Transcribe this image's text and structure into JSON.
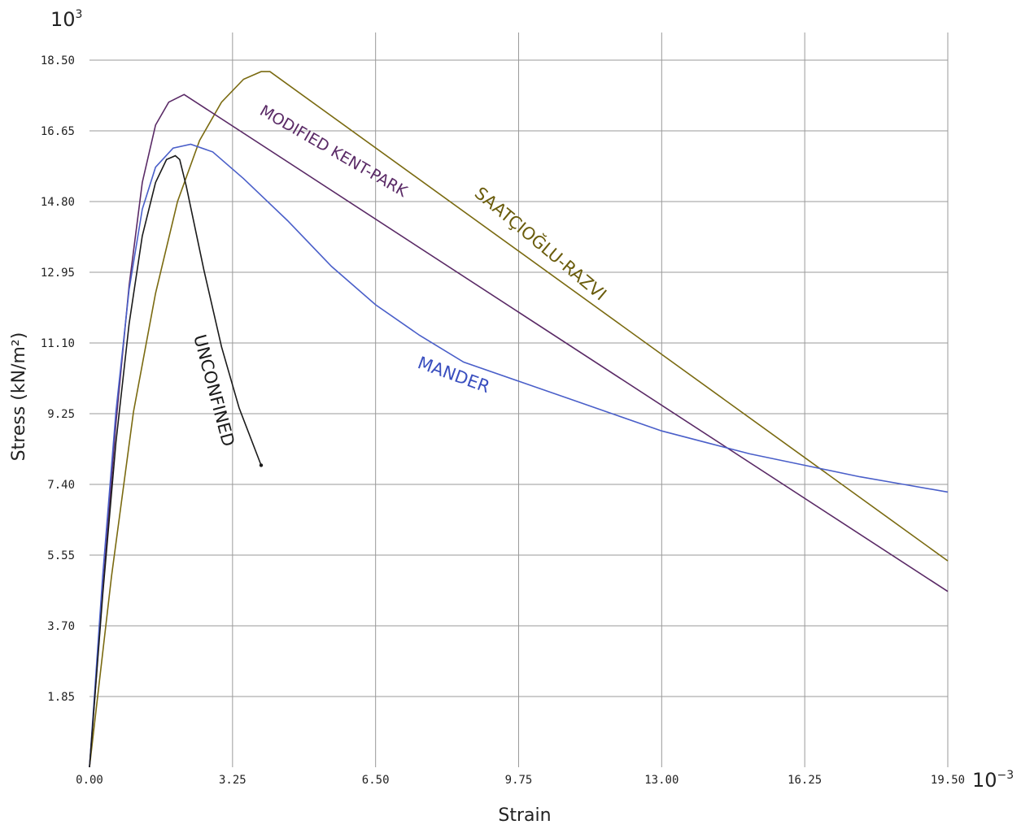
{
  "chart_data": {
    "type": "line",
    "xlabel": "Strain",
    "ylabel": "Stress (kN/m²)",
    "x_multiplier": "10",
    "x_multiplier_exp": "−3",
    "y_multiplier": "10",
    "y_multiplier_exp": "3",
    "xlim": [
      0,
      19.5
    ],
    "ylim": [
      0,
      18.5
    ],
    "x_ticks": [
      "0.00",
      "3.25",
      "6.50",
      "9.75",
      "13.00",
      "16.25",
      "19.50"
    ],
    "y_ticks": [
      "1.85",
      "3.70",
      "5.55",
      "7.40",
      "9.25",
      "11.10",
      "12.95",
      "14.80",
      "16.65",
      "18.50"
    ],
    "grid": true,
    "legend": "inline-labels",
    "series": [
      {
        "name": "UNCONFINED",
        "color": "#1a1a1a",
        "points": [
          [
            0,
            0
          ],
          [
            0.3,
            4.5
          ],
          [
            0.6,
            8.5
          ],
          [
            0.9,
            11.6
          ],
          [
            1.2,
            13.9
          ],
          [
            1.5,
            15.3
          ],
          [
            1.75,
            15.9
          ],
          [
            1.95,
            16.0
          ],
          [
            2.05,
            15.9
          ],
          [
            2.2,
            15.2
          ],
          [
            2.6,
            13.0
          ],
          [
            3.0,
            11.0
          ],
          [
            3.4,
            9.4
          ],
          [
            3.9,
            7.9
          ]
        ]
      },
      {
        "name": "MODIFIED KENT-PARK",
        "color": "#5a2a66",
        "points": [
          [
            0,
            0
          ],
          [
            0.3,
            4.6
          ],
          [
            0.6,
            9.0
          ],
          [
            0.9,
            12.6
          ],
          [
            1.2,
            15.3
          ],
          [
            1.5,
            16.8
          ],
          [
            1.8,
            17.4
          ],
          [
            2.15,
            17.6
          ],
          [
            19.5,
            4.6
          ]
        ]
      },
      {
        "name": "SAATÇIOĞLU-RAZVI",
        "color": "#7a6a10",
        "points": [
          [
            0,
            0
          ],
          [
            0.5,
            5.0
          ],
          [
            1.0,
            9.3
          ],
          [
            1.5,
            12.4
          ],
          [
            2.0,
            14.8
          ],
          [
            2.5,
            16.4
          ],
          [
            3.0,
            17.4
          ],
          [
            3.5,
            18.0
          ],
          [
            3.9,
            18.2
          ],
          [
            4.1,
            18.2
          ],
          [
            19.5,
            5.4
          ]
        ]
      },
      {
        "name": "MANDER",
        "color": "#4a5fc9",
        "points": [
          [
            0,
            0
          ],
          [
            0.3,
            5.0
          ],
          [
            0.6,
            9.3
          ],
          [
            0.9,
            12.5
          ],
          [
            1.2,
            14.6
          ],
          [
            1.5,
            15.7
          ],
          [
            1.9,
            16.2
          ],
          [
            2.3,
            16.3
          ],
          [
            2.8,
            16.1
          ],
          [
            3.5,
            15.4
          ],
          [
            4.5,
            14.3
          ],
          [
            5.5,
            13.1
          ],
          [
            6.5,
            12.1
          ],
          [
            7.5,
            11.3
          ],
          [
            8.5,
            10.6
          ],
          [
            9.75,
            10.1
          ],
          [
            11,
            9.6
          ],
          [
            12,
            9.2
          ],
          [
            13,
            8.8
          ],
          [
            14,
            8.5
          ],
          [
            15,
            8.2
          ],
          [
            16.25,
            7.9
          ],
          [
            17.5,
            7.6
          ],
          [
            18.5,
            7.4
          ],
          [
            19.5,
            7.2
          ]
        ]
      }
    ]
  }
}
